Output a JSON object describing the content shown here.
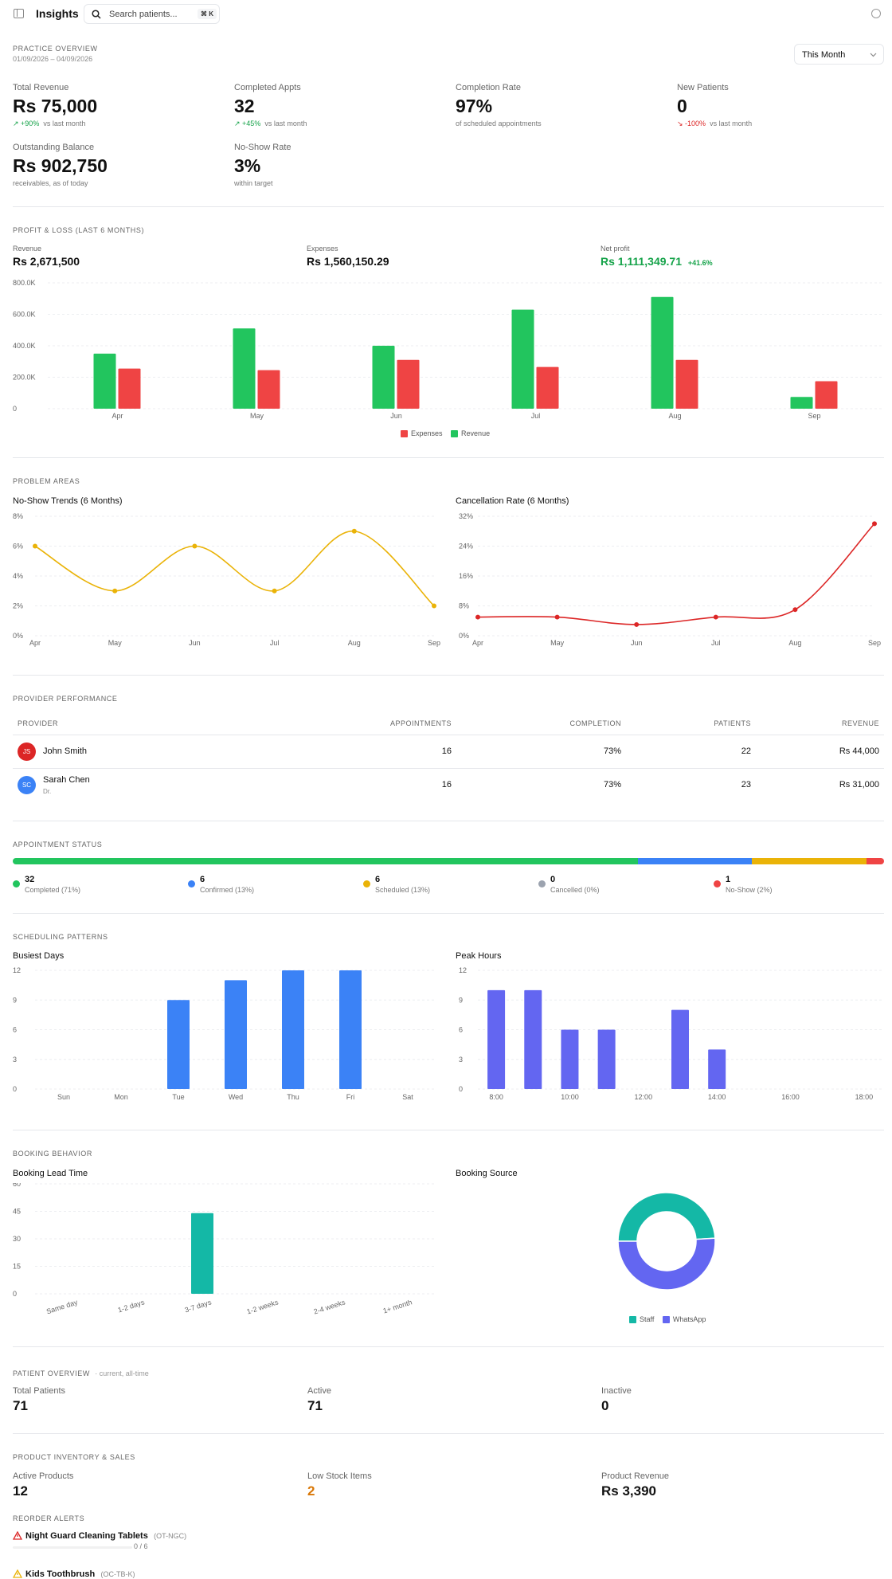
{
  "header": {
    "title": "Insights",
    "search_placeholder": "Search patients...",
    "shortcut": "⌘ K"
  },
  "overview": {
    "label": "PRACTICE OVERVIEW",
    "range": "01/09/2026 – 04/09/2026",
    "period": "This Month",
    "kpis": [
      {
        "label": "Total Revenue",
        "value": "Rs 75,000",
        "delta": "+90%",
        "sub": "vs last month",
        "trend": "up"
      },
      {
        "label": "Completed Appts",
        "value": "32",
        "delta": "+45%",
        "sub": "vs last month",
        "trend": "up"
      },
      {
        "label": "Completion Rate",
        "value": "97%",
        "sub": "of scheduled appointments"
      },
      {
        "label": "New Patients",
        "value": "0",
        "delta": "-100%",
        "sub": "vs last month",
        "trend": "down"
      },
      {
        "label": "Outstanding Balance",
        "value": "Rs 902,750",
        "sub": "receivables, as of today"
      },
      {
        "label": "No-Show Rate",
        "value": "3%",
        "sub": "within target"
      }
    ]
  },
  "pnl": {
    "label": "PROFIT & LOSS (LAST 6 MONTHS)",
    "revenue_label": "Revenue",
    "revenue_value": "Rs 2,671,500",
    "expenses_label": "Expenses",
    "expenses_value": "Rs 1,560,150.29",
    "profit_label": "Net profit",
    "profit_value": "Rs 1,111,349.71",
    "profit_delta": "+41.6%",
    "legend_expenses": "Expenses",
    "legend_revenue": "Revenue"
  },
  "problem": {
    "label": "PROBLEM AREAS",
    "noshow_title": "No-Show Trends (6 Months)",
    "cancel_title": "Cancellation Rate (6 Months)"
  },
  "providers": {
    "label": "PROVIDER PERFORMANCE",
    "headers": [
      "PROVIDER",
      "APPOINTMENTS",
      "COMPLETION",
      "PATIENTS",
      "REVENUE"
    ],
    "rows": [
      {
        "initials": "JS",
        "name": "John Smith",
        "title": "",
        "color": "#dc2626",
        "appointments": "16",
        "completion": "73%",
        "patients": "22",
        "revenue": "Rs 44,000"
      },
      {
        "initials": "SC",
        "name": "Sarah Chen",
        "title": "Dr.",
        "color": "#3b82f6",
        "appointments": "16",
        "completion": "73%",
        "patients": "23",
        "revenue": "Rs 31,000"
      }
    ]
  },
  "status": {
    "label": "APPOINTMENT STATUS",
    "items": [
      {
        "count": "32",
        "label": "Completed (71%)",
        "color": "#22c55e",
        "share": 71
      },
      {
        "count": "6",
        "label": "Confirmed (13%)",
        "color": "#3b82f6",
        "share": 13
      },
      {
        "count": "6",
        "label": "Scheduled (13%)",
        "color": "#eab308",
        "share": 13
      },
      {
        "count": "0",
        "label": "Cancelled (0%)",
        "color": "#9ca3af",
        "share": 0
      },
      {
        "count": "1",
        "label": "No-Show (2%)",
        "color": "#ef4444",
        "share": 2
      }
    ]
  },
  "scheduling": {
    "label": "SCHEDULING PATTERNS",
    "busiest_title": "Busiest Days",
    "peak_title": "Peak Hours"
  },
  "booking": {
    "label": "BOOKING BEHAVIOR",
    "lead_title": "Booking Lead Time",
    "source_title": "Booking Source",
    "legend": [
      "Staff",
      "WhatsApp"
    ]
  },
  "patients": {
    "label": "PATIENT OVERVIEW",
    "qualifier": "· current, all-time",
    "total_label": "Total Patients",
    "total_value": "71",
    "active_label": "Active",
    "active_value": "71",
    "inactive_label": "Inactive",
    "inactive_value": "0"
  },
  "inventory": {
    "label": "PRODUCT INVENTORY & SALES",
    "active_label": "Active Products",
    "active_value": "12",
    "low_label": "Low Stock Items",
    "low_value": "2",
    "rev_label": "Product Revenue",
    "rev_value": "Rs 3,390",
    "alerts_label": "REORDER ALERTS",
    "alerts": [
      {
        "name": "Night Guard Cleaning Tablets",
        "code": "(OT-NGC)",
        "stock": "0 / 6",
        "color": "#dc2626"
      },
      {
        "name": "Kids Toothbrush",
        "code": "(OC-TB-K)",
        "stock": "",
        "color": "#eab308"
      }
    ]
  },
  "colors": {
    "revenue": "#22c55e",
    "expenses": "#ef4444",
    "noshow": "#eab308",
    "cancel": "#dc2626",
    "days": "#3b82f6",
    "hours": "#6366f1",
    "lead": "#14b8a6",
    "staff": "#14b8a6",
    "whatsapp": "#6366f1"
  },
  "chart_data": [
    {
      "type": "bar",
      "title": "Profit & Loss (Last 6 Months)",
      "categories": [
        "Apr",
        "May",
        "Jun",
        "Jul",
        "Aug",
        "Sep"
      ],
      "series": [
        {
          "name": "Revenue",
          "values": [
            350000,
            510000,
            400000,
            630000,
            710000,
            75000
          ]
        },
        {
          "name": "Expenses",
          "values": [
            255000,
            245000,
            310000,
            265000,
            310000,
            175000
          ]
        }
      ],
      "ylim": [
        0,
        800000
      ],
      "yticks": [
        "0",
        "200.0K",
        "400.0K",
        "600.0K",
        "800.0K"
      ],
      "legend": "bottom"
    },
    {
      "type": "line",
      "title": "No-Show Trends (6 Months)",
      "categories": [
        "Apr",
        "May",
        "Jun",
        "Jul",
        "Aug",
        "Sep"
      ],
      "values": [
        6,
        3,
        6,
        3,
        7,
        2
      ],
      "ylim": [
        0,
        8
      ],
      "yticks": [
        "0%",
        "2%",
        "4%",
        "6%",
        "8%"
      ]
    },
    {
      "type": "line",
      "title": "Cancellation Rate (6 Months)",
      "categories": [
        "Apr",
        "May",
        "Jun",
        "Jul",
        "Aug",
        "Sep"
      ],
      "values": [
        5,
        5,
        3,
        5,
        7,
        30
      ],
      "ylim": [
        0,
        32
      ],
      "yticks": [
        "0%",
        "8%",
        "16%",
        "24%",
        "32%"
      ]
    },
    {
      "type": "bar",
      "title": "Busiest Days",
      "categories": [
        "Sun",
        "Mon",
        "Tue",
        "Wed",
        "Thu",
        "Fri",
        "Sat"
      ],
      "values": [
        0,
        0,
        9,
        11,
        12,
        12,
        0
      ],
      "ylim": [
        0,
        12
      ],
      "yticks": [
        "0",
        "3",
        "6",
        "9",
        "12"
      ]
    },
    {
      "type": "bar",
      "title": "Peak Hours",
      "categories": [
        "8:00",
        "9:00",
        "10:00",
        "11:00",
        "12:00",
        "13:00",
        "14:00",
        "15:00",
        "16:00",
        "17:00",
        "18:00"
      ],
      "values": [
        10,
        10,
        6,
        6,
        0,
        8,
        4,
        0,
        0,
        0,
        0
      ],
      "tick_labels": [
        "8:00",
        "10:00",
        "12:00",
        "14:00",
        "16:00",
        "18:00"
      ],
      "ylim": [
        0,
        12
      ],
      "yticks": [
        "0",
        "3",
        "6",
        "9",
        "12"
      ]
    },
    {
      "type": "bar",
      "title": "Booking Lead Time",
      "categories": [
        "Same day",
        "1-2 days",
        "3-7 days",
        "1-2 weeks",
        "2-4 weeks",
        "1+ month"
      ],
      "values": [
        0,
        0,
        44,
        0,
        0,
        0
      ],
      "ylim": [
        0,
        60
      ],
      "yticks": [
        "0",
        "15",
        "30",
        "45",
        "60"
      ]
    },
    {
      "type": "pie",
      "title": "Booking Source",
      "categories": [
        "Staff",
        "WhatsApp"
      ],
      "values": [
        49,
        51
      ],
      "legend": "bottom"
    }
  ]
}
